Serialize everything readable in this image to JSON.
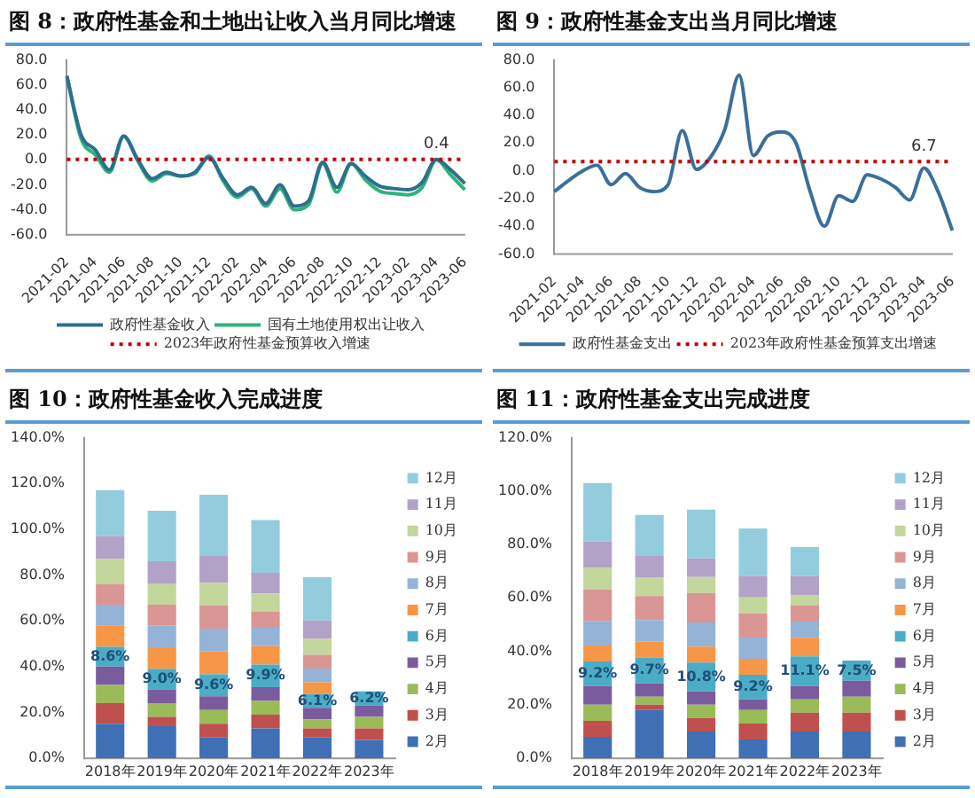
{
  "chart_data": [
    {
      "type": "line",
      "title": "图 8：政府性基金和土地出让收入当月同比增速",
      "categories": [
        "2021-02",
        null,
        "2021-04",
        null,
        "2021-06",
        null,
        "2021-08",
        null,
        "2021-10",
        null,
        "2021-12",
        null,
        "2022-02",
        null,
        "2022-04",
        null,
        "2022-06",
        null,
        "2022-08",
        null,
        "2022-10",
        null,
        "2022-12",
        null,
        "2023-02",
        null,
        "2023-04",
        null,
        "2023-06"
      ],
      "series": [
        {
          "name": "政府性基金收入",
          "color": "#2e6e8e",
          "values": [
            67,
            20,
            8,
            -8,
            19,
            0,
            -15,
            -10,
            -13,
            -10,
            2,
            -15,
            -28,
            -22,
            -35,
            -20,
            -37,
            -33,
            -2,
            -22,
            -3,
            -13,
            -21,
            -23,
            -24,
            -18,
            0.4,
            -8,
            -19
          ]
        },
        {
          "name": "国有土地使用权出让收入",
          "color": "#2db37a",
          "values": [
            67,
            17,
            4,
            -10,
            19,
            -1,
            -17,
            -11,
            -13,
            -11,
            3,
            -17,
            -30,
            -23,
            -37,
            -23,
            -40,
            -36,
            -3,
            -26,
            -3,
            -16,
            -25,
            -27,
            -28,
            -22,
            0,
            -12,
            -24
          ]
        }
      ],
      "ylim": [
        -60,
        80
      ],
      "yticks": [
        {
          "value": -60,
          "label": "-60.0"
        },
        {
          "value": -40,
          "label": "-40.0"
        },
        {
          "value": -20,
          "label": "-20.0"
        },
        {
          "value": 0,
          "label": "0.0"
        },
        {
          "value": 20,
          "label": "20.0"
        },
        {
          "value": 40,
          "label": "40.0"
        },
        {
          "value": 60,
          "label": "60.0"
        },
        {
          "value": 80,
          "label": "80.0"
        }
      ],
      "ref_lines": [
        {
          "axis": "y",
          "value": 0.4,
          "label": "2023年政府性基金预算收入增速",
          "color": "#c00000",
          "line_style": "dotted"
        }
      ],
      "annotations": [
        {
          "text": "0.4",
          "x": "2023-04",
          "y": 0.4
        }
      ],
      "grid": false,
      "legend": "bottom",
      "marker": "none",
      "line_style": "solid"
    },
    {
      "type": "line",
      "title": "图 9：政府性基金支出当月同比增速",
      "categories": [
        "2021-02",
        null,
        "2021-04",
        null,
        "2021-06",
        null,
        "2021-08",
        null,
        "2021-10",
        null,
        "2021-12",
        null,
        "2022-02",
        null,
        "2022-04",
        null,
        "2022-06",
        null,
        "2022-08",
        null,
        "2022-10",
        null,
        "2022-12",
        null,
        "2023-02",
        null,
        "2023-04",
        null,
        "2023-06"
      ],
      "series": [
        {
          "name": "政府性基金支出",
          "color": "#3a6f9a",
          "values": [
            -15,
            -7,
            0,
            4,
            -10,
            -2,
            -12,
            -15,
            -10,
            29,
            1,
            10,
            30,
            69,
            11,
            25,
            28,
            20,
            -15,
            -40,
            -18,
            -22,
            -3,
            -6,
            -12,
            -21,
            2,
            -15,
            -43
          ]
        }
      ],
      "ylim": [
        -60,
        80
      ],
      "yticks": [
        {
          "value": -60,
          "label": "-60.0"
        },
        {
          "value": -40,
          "label": "-40.0"
        },
        {
          "value": -20,
          "label": "-20.0"
        },
        {
          "value": 0,
          "label": "0.0"
        },
        {
          "value": 20,
          "label": "20.0"
        },
        {
          "value": 40,
          "label": "40.0"
        },
        {
          "value": 60,
          "label": "60.0"
        },
        {
          "value": 80,
          "label": "80.0"
        }
      ],
      "ref_lines": [
        {
          "axis": "y",
          "value": 6.7,
          "label": "2023年政府性基金预算支出增速",
          "color": "#c00000",
          "line_style": "dotted"
        }
      ],
      "annotations": [
        {
          "text": "6.7",
          "x": "2023-04",
          "y": 6.7
        }
      ],
      "grid": false,
      "legend": "bottom",
      "marker": "none",
      "line_style": "solid"
    },
    {
      "type": "bar",
      "stacked": true,
      "title": "图 10：政府性基金收入完成进度",
      "categories": [
        "2018年",
        "2019年",
        "2020年",
        "2021年",
        "2022年",
        "2023年"
      ],
      "series": [
        {
          "name": "2月",
          "color": "#3f6fb5",
          "values": [
            15,
            14,
            9,
            13,
            9,
            8
          ]
        },
        {
          "name": "3月",
          "color": "#c0504d",
          "values": [
            9,
            4,
            6,
            6,
            4,
            5
          ]
        },
        {
          "name": "4月",
          "color": "#9bbb59",
          "values": [
            8,
            6,
            6,
            6,
            4,
            5
          ]
        },
        {
          "name": "5月",
          "color": "#7a5c9e",
          "values": [
            8,
            6,
            6,
            6,
            5,
            5
          ]
        },
        {
          "name": "6月",
          "color": "#4bacc6",
          "values": [
            8.6,
            9.0,
            9.6,
            9.9,
            6.1,
            6.2
          ],
          "value_labels": [
            "8.6%",
            "9.0%",
            "9.6%",
            "9.9%",
            "6.1%",
            "6.2%"
          ]
        },
        {
          "name": "7月",
          "color": "#f79646",
          "values": [
            9.4,
            9,
            10,
            8,
            5,
            null
          ]
        },
        {
          "name": "8月",
          "color": "#95b3d7",
          "values": [
            9,
            10,
            10,
            8,
            6,
            null
          ]
        },
        {
          "name": "9月",
          "color": "#d99694",
          "values": [
            9,
            9,
            10,
            7,
            6,
            null
          ]
        },
        {
          "name": "10月",
          "color": "#c3d69b",
          "values": [
            11,
            9,
            10,
            8,
            7,
            null
          ]
        },
        {
          "name": "11月",
          "color": "#b3a2c7",
          "values": [
            10,
            10,
            12,
            9,
            8,
            null
          ]
        },
        {
          "name": "12月",
          "color": "#93cddd",
          "values": [
            20,
            22,
            26.4,
            23.1,
            18.9,
            null
          ]
        }
      ],
      "ylim": [
        0,
        140
      ],
      "yticks": [
        {
          "value": 0,
          "label": "0.0%"
        },
        {
          "value": 20,
          "label": "20.0%"
        },
        {
          "value": 40,
          "label": "40.0%"
        },
        {
          "value": 60,
          "label": "60.0%"
        },
        {
          "value": 80,
          "label": "80.0%"
        },
        {
          "value": 100,
          "label": "100.0%"
        },
        {
          "value": 120,
          "label": "120.0%"
        },
        {
          "value": 140,
          "label": "140.0%"
        }
      ],
      "grid": false,
      "legend": "right"
    },
    {
      "type": "bar",
      "stacked": true,
      "title": "图 11：政府性基金支出完成进度",
      "categories": [
        "2018年",
        "2019年",
        "2020年",
        "2021年",
        "2022年",
        "2023年"
      ],
      "series": [
        {
          "name": "2月",
          "color": "#3f6fb5",
          "values": [
            8,
            18,
            10,
            7,
            10,
            10
          ]
        },
        {
          "name": "3月",
          "color": "#c0504d",
          "values": [
            6,
            2,
            5,
            6,
            7,
            7
          ]
        },
        {
          "name": "4月",
          "color": "#9bbb59",
          "values": [
            6,
            3,
            5,
            5,
            5,
            6
          ]
        },
        {
          "name": "5月",
          "color": "#7a5c9e",
          "values": [
            7,
            5,
            5,
            4,
            5,
            6
          ]
        },
        {
          "name": "6月",
          "color": "#4bacc6",
          "values": [
            9.2,
            9.7,
            10.8,
            9.2,
            11.1,
            7.5
          ],
          "value_labels": [
            "9.2%",
            "9.7%",
            "10.8%",
            "9.2%",
            "11.1%",
            "7.5%"
          ]
        },
        {
          "name": "7月",
          "color": "#f79646",
          "values": [
            6,
            6,
            6,
            6,
            7,
            null
          ]
        },
        {
          "name": "8月",
          "color": "#95b3d7",
          "values": [
            9,
            8,
            9,
            8,
            6,
            null
          ]
        },
        {
          "name": "9月",
          "color": "#d99694",
          "values": [
            12,
            9,
            11,
            9,
            6,
            null
          ]
        },
        {
          "name": "10月",
          "color": "#c3d69b",
          "values": [
            8,
            7,
            6,
            6,
            4,
            null
          ]
        },
        {
          "name": "11月",
          "color": "#b3a2c7",
          "values": [
            10,
            8,
            7,
            8,
            7,
            null
          ]
        },
        {
          "name": "12月",
          "color": "#93cddd",
          "values": [
            21.8,
            15.3,
            18.2,
            17.8,
            10.9,
            null
          ]
        }
      ],
      "ylim": [
        0,
        120
      ],
      "yticks": [
        {
          "value": 0,
          "label": "0.0%"
        },
        {
          "value": 20,
          "label": "20.0%"
        },
        {
          "value": 40,
          "label": "40.0%"
        },
        {
          "value": 60,
          "label": "60.0%"
        },
        {
          "value": 80,
          "label": "80.0%"
        },
        {
          "value": 100,
          "label": "100.0%"
        },
        {
          "value": 120,
          "label": "120.0%"
        }
      ],
      "grid": false,
      "legend": "right"
    }
  ]
}
